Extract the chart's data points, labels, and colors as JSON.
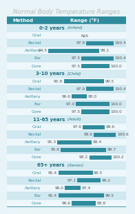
{
  "title": "Normal Body Temperature Ranges",
  "x_min": 94.0,
  "x_max": 101.5,
  "bar_color": "#2e8b9c",
  "groups": [
    {
      "label": "0-2 years",
      "label_suffix": "(Infant)",
      "rows": [
        {
          "method": "Oral",
          "lo": null,
          "hi": null,
          "label_lo": "N/A",
          "label_hi": ""
        },
        {
          "method": "Rectal",
          "lo": 97.9,
          "hi": 100.4,
          "label_lo": "97.9",
          "label_hi": "100.4"
        },
        {
          "method": "Axillary",
          "lo": 94.5,
          "hi": 99.1,
          "label_lo": "94.5",
          "label_hi": "99.1"
        },
        {
          "method": "Ear",
          "lo": 97.5,
          "hi": 100.4,
          "label_lo": "97.5",
          "label_hi": "100.4"
        },
        {
          "method": "Core",
          "lo": 97.5,
          "hi": 100.0,
          "label_lo": "97.5",
          "label_hi": "100.0"
        }
      ]
    },
    {
      "label": "3-10 years",
      "label_suffix": "(Child)",
      "rows": [
        {
          "method": "Oral",
          "lo": 95.9,
          "hi": 99.5,
          "label_lo": "95.9",
          "label_hi": "99.5"
        },
        {
          "method": "Rectal",
          "lo": 97.9,
          "hi": 100.4,
          "label_lo": "97.9",
          "label_hi": "100.4"
        },
        {
          "method": "Axillary",
          "lo": 96.6,
          "hi": 98.0,
          "label_lo": "96.6",
          "label_hi": "98.0"
        },
        {
          "method": "Ear",
          "lo": 97.0,
          "hi": 100.0,
          "label_lo": "97.0",
          "label_hi": "100.0"
        },
        {
          "method": "Core",
          "lo": 97.5,
          "hi": 100.0,
          "label_lo": "97.5",
          "label_hi": "100.0"
        }
      ]
    },
    {
      "label": "11-65 years",
      "label_suffix": "(Adult)",
      "rows": [
        {
          "method": "Oral",
          "lo": 97.6,
          "hi": 99.6,
          "label_lo": "97.6",
          "label_hi": "99.6"
        },
        {
          "method": "Rectal",
          "lo": 98.6,
          "hi": 100.6,
          "label_lo": "98.6",
          "label_hi": "100.6"
        },
        {
          "method": "Axillary",
          "lo": 95.3,
          "hi": 98.4,
          "label_lo": "95.3",
          "label_hi": "98.4"
        },
        {
          "method": "Ear",
          "lo": 95.6,
          "hi": 99.7,
          "label_lo": "95.6",
          "label_hi": "99.7"
        },
        {
          "method": "Core",
          "lo": 98.2,
          "hi": 100.2,
          "label_lo": "98.2",
          "label_hi": "100.2"
        }
      ]
    },
    {
      "label": "65+ years",
      "label_suffix": "(Senior)",
      "rows": [
        {
          "method": "Oral",
          "lo": 95.4,
          "hi": 98.5,
          "label_lo": "95.4",
          "label_hi": "98.5"
        },
        {
          "method": "Rectal",
          "lo": 97.1,
          "hi": 99.2,
          "label_lo": "97.1",
          "label_hi": "99.2"
        },
        {
          "method": "Axillary",
          "lo": 96.0,
          "hi": 97.4,
          "label_lo": "96.0",
          "label_hi": "97.4"
        },
        {
          "method": "Ear",
          "lo": 95.4,
          "hi": 99.5,
          "label_lo": "95.4",
          "label_hi": "99.5"
        },
        {
          "method": "Core",
          "lo": 96.6,
          "hi": 98.8,
          "label_lo": "96.6",
          "label_hi": "98.8"
        }
      ]
    }
  ],
  "header_bg": "#2e8b9c",
  "header_text": "#ffffff",
  "group_bg": "#d6ecf2",
  "row_bg_even": "#eef7fb",
  "row_bg_odd": "#d0e8f0",
  "group_label_color": "#1a6a7a",
  "method_color": "#2e8b9c",
  "value_color": "#555555",
  "title_color": "#bbbbbb",
  "title_fontsize": 6.5,
  "header_fontsize": 5.0,
  "group_fontsize": 5.0,
  "row_fontsize": 4.5,
  "col_split": 0.3
}
